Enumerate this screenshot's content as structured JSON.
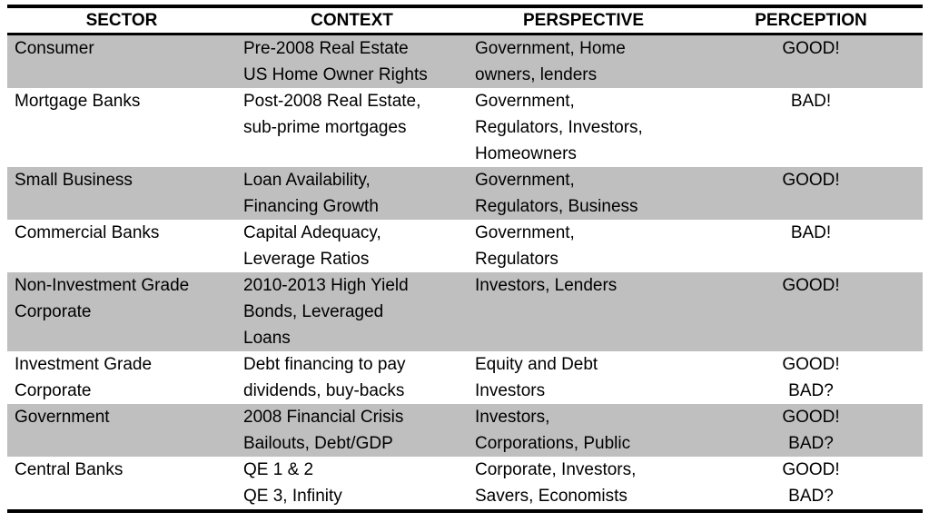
{
  "colors": {
    "row_shaded": "#bfbfbf",
    "row_plain": "#ffffff",
    "border": "#000000",
    "text": "#000000"
  },
  "table": {
    "headers": [
      "SECTOR",
      "CONTEXT",
      "PERSPECTIVE",
      "PERCEPTION"
    ],
    "rows": [
      {
        "shaded": true,
        "sector": [
          "Consumer"
        ],
        "context": [
          "Pre-2008 Real Estate",
          "US Home Owner Rights"
        ],
        "perspective": [
          "Government, Home",
          "owners, lenders"
        ],
        "perception": [
          "GOOD!"
        ]
      },
      {
        "shaded": false,
        "sector": [
          "Mortgage Banks"
        ],
        "context": [
          "Post-2008 Real Estate,",
          "sub-prime mortgages"
        ],
        "perspective": [
          "Government,",
          "Regulators, Investors,",
          "Homeowners"
        ],
        "perception": [
          "BAD!"
        ]
      },
      {
        "shaded": true,
        "sector": [
          "Small Business"
        ],
        "context": [
          "Loan Availability,",
          "Financing Growth"
        ],
        "perspective": [
          "Government,",
          "Regulators, Business"
        ],
        "perception": [
          "GOOD!"
        ]
      },
      {
        "shaded": false,
        "sector": [
          "Commercial Banks"
        ],
        "context": [
          "Capital Adequacy,",
          "Leverage Ratios"
        ],
        "perspective": [
          "Government,",
          "Regulators"
        ],
        "perception": [
          "BAD!"
        ]
      },
      {
        "shaded": true,
        "sector": [
          "Non-Investment Grade",
          "Corporate"
        ],
        "context": [
          "2010-2013 High Yield",
          "Bonds, Leveraged",
          "Loans"
        ],
        "perspective": [
          "Investors, Lenders"
        ],
        "perception": [
          "GOOD!"
        ]
      },
      {
        "shaded": false,
        "sector": [
          "Investment Grade",
          "Corporate"
        ],
        "context": [
          "Debt financing to pay",
          "dividends, buy-backs"
        ],
        "perspective": [
          "Equity and Debt",
          "Investors"
        ],
        "perception": [
          "GOOD!",
          "BAD?"
        ]
      },
      {
        "shaded": true,
        "sector": [
          "Government"
        ],
        "context": [
          "2008 Financial Crisis",
          "Bailouts, Debt/GDP"
        ],
        "perspective": [
          "Investors,",
          "Corporations, Public"
        ],
        "perception": [
          "GOOD!",
          "BAD?"
        ]
      },
      {
        "shaded": false,
        "sector": [
          "Central Banks"
        ],
        "context": [
          "QE 1 & 2",
          "QE 3, Infinity"
        ],
        "perspective": [
          "Corporate, Investors,",
          "Savers, Economists"
        ],
        "perception": [
          "GOOD!",
          "BAD?"
        ]
      }
    ]
  }
}
